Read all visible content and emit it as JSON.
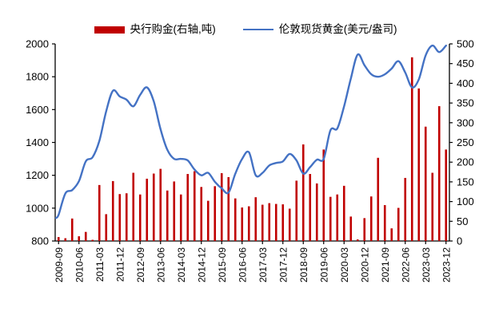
{
  "legend": {
    "bars_label": "央行购金(右轴,吨)",
    "line_label": "伦敦现货黄金(美元/盎司)"
  },
  "colors": {
    "bars": "#c00000",
    "line": "#4472c4",
    "axis": "#000000",
    "background": "#ffffff"
  },
  "chart_data": {
    "type": "bar+line",
    "title": "",
    "grid": false,
    "legend_position": "top",
    "categories": [
      "2009-09",
      "2009-12",
      "2010-03",
      "2010-06",
      "2010-09",
      "2010-12",
      "2011-03",
      "2011-06",
      "2011-09",
      "2011-12",
      "2012-03",
      "2012-06",
      "2012-09",
      "2012-12",
      "2013-03",
      "2013-06",
      "2013-09",
      "2013-12",
      "2014-03",
      "2014-06",
      "2014-09",
      "2014-12",
      "2015-03",
      "2015-06",
      "2015-09",
      "2015-12",
      "2016-03",
      "2016-06",
      "2016-09",
      "2016-12",
      "2017-03",
      "2017-06",
      "2017-09",
      "2017-12",
      "2018-03",
      "2018-06",
      "2018-09",
      "2018-12",
      "2019-03",
      "2019-06",
      "2019-09",
      "2019-12",
      "2020-03",
      "2020-06",
      "2020-09",
      "2020-12",
      "2021-03",
      "2021-06",
      "2021-09",
      "2021-12",
      "2022-03",
      "2022-06",
      "2022-09",
      "2022-12",
      "2023-03",
      "2023-06",
      "2023-09",
      "2023-12"
    ],
    "x_tick_labels": [
      "2009-09",
      "2010-06",
      "2011-03",
      "2011-12",
      "2012-09",
      "2013-06",
      "2014-03",
      "2014-12",
      "2015-09",
      "2016-06",
      "2017-03",
      "2017-12",
      "2018-09",
      "2019-06",
      "2020-03",
      "2020-12",
      "2021-09",
      "2022-06",
      "2023-03",
      "2023-12"
    ],
    "series": [
      {
        "name": "央行购金(右轴,吨)",
        "type": "bar",
        "axis": "right",
        "values": [
          10,
          7,
          57,
          12,
          23,
          3,
          142,
          68,
          152,
          119,
          121,
          173,
          118,
          158,
          171,
          183,
          128,
          151,
          118,
          170,
          177,
          137,
          102,
          139,
          172,
          162,
          108,
          85,
          88,
          111,
          92,
          96,
          94,
          93,
          82,
          153,
          245,
          170,
          146,
          232,
          112,
          118,
          140,
          62,
          4,
          58,
          113,
          211,
          91,
          32,
          84,
          160,
          466,
          387,
          290,
          173,
          342,
          232
        ]
      },
      {
        "name": "伦敦现货黄金(美元/盎司)",
        "type": "line",
        "axis": "left",
        "values": [
          960,
          1090,
          1110,
          1165,
          1285,
          1310,
          1410,
          1590,
          1715,
          1680,
          1660,
          1620,
          1690,
          1735,
          1650,
          1480,
          1355,
          1300,
          1300,
          1290,
          1235,
          1200,
          1215,
          1160,
          1120,
          1095,
          1210,
          1300,
          1340,
          1200,
          1215,
          1260,
          1275,
          1285,
          1330,
          1290,
          1210,
          1250,
          1295,
          1300,
          1475,
          1485,
          1620,
          1790,
          1935,
          1870,
          1815,
          1800,
          1815,
          1850,
          1895,
          1825,
          1735,
          1785,
          1930,
          1990,
          1950,
          1990
        ]
      }
    ],
    "left_axis": {
      "min": 800,
      "max": 2000,
      "ticks": [
        2000,
        1800,
        1600,
        1400,
        1200,
        1000,
        800
      ]
    },
    "right_axis": {
      "min": 0,
      "max": 500,
      "ticks": [
        500,
        450,
        400,
        350,
        300,
        250,
        200,
        150,
        100,
        50,
        0
      ]
    }
  }
}
